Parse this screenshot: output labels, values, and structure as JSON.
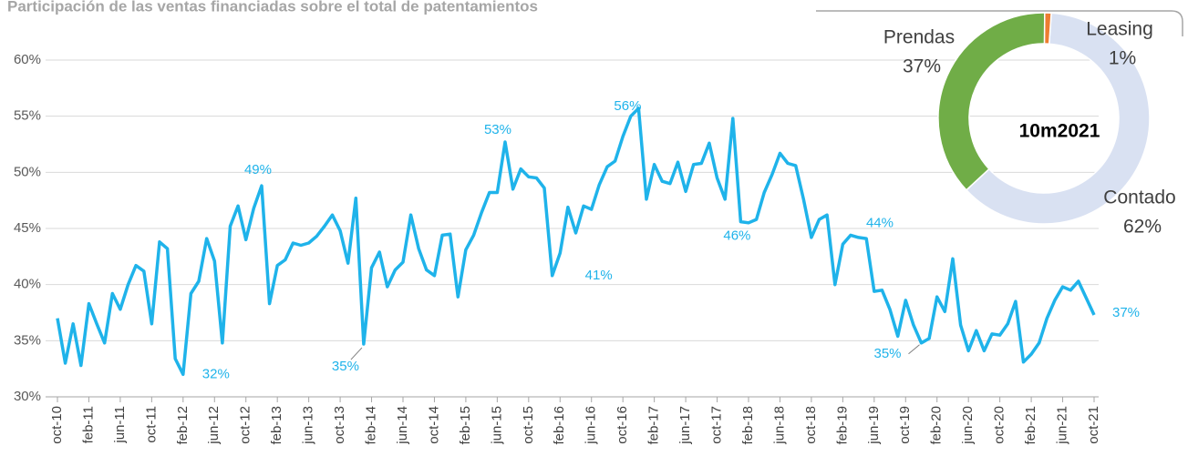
{
  "chart_data": [
    {
      "type": "line",
      "title": "Participación de las ventas financiadas sobre el total de patentamientos",
      "categories": [
        "oct-10",
        null,
        null,
        null,
        "feb-11",
        null,
        null,
        null,
        "jun-11",
        null,
        null,
        null,
        "oct-11",
        null,
        null,
        null,
        "feb-12",
        null,
        null,
        null,
        "jun-12",
        null,
        null,
        null,
        "oct-12",
        null,
        null,
        null,
        "feb-13",
        null,
        null,
        null,
        "jun-13",
        null,
        null,
        null,
        "oct-13",
        null,
        null,
        null,
        "feb-14",
        null,
        null,
        null,
        "jun-14",
        null,
        null,
        null,
        "oct-14",
        null,
        null,
        null,
        "feb-15",
        null,
        null,
        null,
        "jun-15",
        null,
        null,
        null,
        "oct-15",
        null,
        null,
        null,
        "feb-16",
        null,
        null,
        null,
        "jun-16",
        null,
        null,
        null,
        "oct-16",
        null,
        null,
        null,
        "feb-17",
        null,
        null,
        null,
        "jun-17",
        null,
        null,
        null,
        "oct-17",
        null,
        null,
        null,
        "feb-18",
        null,
        null,
        null,
        "jun-18",
        null,
        null,
        null,
        "oct-18",
        null,
        null,
        null,
        "feb-19",
        null,
        null,
        null,
        "jun-19",
        null,
        null,
        null,
        "oct-19",
        null,
        null,
        null,
        "feb-20",
        null,
        null,
        null,
        "jun-20",
        null,
        null,
        null,
        "oct-20",
        null,
        null,
        null,
        "feb-21",
        null,
        null,
        null,
        "jun-21",
        null,
        null,
        null,
        "oct-21"
      ],
      "values": [
        37,
        33,
        36.5,
        32.8,
        38.3,
        36.5,
        34.8,
        39.2,
        37.8,
        40,
        41.7,
        41.2,
        36.5,
        43.8,
        43.2,
        33.4,
        32,
        39.2,
        40.3,
        44.1,
        42.1,
        34.8,
        45.2,
        47,
        44,
        46.8,
        48.8,
        38.3,
        41.7,
        42.2,
        43.7,
        43.5,
        43.7,
        44.3,
        45.2,
        46.2,
        44.8,
        41.9,
        47.7,
        34.7,
        41.5,
        42.9,
        39.8,
        41.3,
        42,
        46.2,
        43.2,
        41.3,
        40.8,
        44.4,
        44.5,
        38.9,
        43.1,
        44.4,
        46.4,
        48.2,
        48.2,
        52.7,
        48.5,
        50.3,
        49.6,
        49.5,
        48.6,
        40.8,
        42.8,
        46.9,
        44.6,
        47,
        46.7,
        48.9,
        50.5,
        51,
        53.2,
        55,
        55.7,
        47.6,
        50.7,
        49.2,
        49,
        50.9,
        48.3,
        50.7,
        50.8,
        52.6,
        49.5,
        47.6,
        54.8,
        45.6,
        45.5,
        45.8,
        48.2,
        49.8,
        51.7,
        50.8,
        50.6,
        47.6,
        44.2,
        45.8,
        46.2,
        40,
        43.6,
        44.4,
        44.2,
        44.1,
        39.4,
        39.5,
        37.8,
        35.4,
        38.6,
        36.4,
        34.8,
        35.2,
        38.9,
        37.6,
        42.3,
        36.4,
        34.1,
        35.9,
        34.1,
        35.6,
        35.5,
        36.5,
        38.5,
        33.1,
        33.8,
        34.8,
        37,
        38.6,
        39.8,
        39.5,
        40.3,
        38.8,
        37.3
      ],
      "value_labels": [
        null,
        null,
        null,
        null,
        null,
        null,
        null,
        null,
        null,
        null,
        null,
        null,
        null,
        null,
        null,
        null,
        "32%",
        null,
        null,
        null,
        null,
        null,
        null,
        null,
        null,
        null,
        "49%",
        null,
        null,
        null,
        null,
        null,
        null,
        null,
        null,
        null,
        null,
        null,
        null,
        "35%",
        null,
        null,
        null,
        null,
        null,
        null,
        null,
        null,
        null,
        null,
        null,
        null,
        null,
        null,
        null,
        null,
        null,
        "53%",
        null,
        null,
        null,
        null,
        null,
        "41%",
        null,
        null,
        null,
        null,
        null,
        null,
        null,
        null,
        null,
        null,
        "56%",
        null,
        null,
        null,
        null,
        null,
        null,
        null,
        null,
        null,
        null,
        null,
        null,
        "46%",
        null,
        null,
        null,
        null,
        null,
        null,
        null,
        null,
        null,
        null,
        null,
        null,
        null,
        "44%",
        null,
        null,
        null,
        null,
        null,
        null,
        null,
        null,
        "35%",
        null,
        null,
        null,
        null,
        null,
        null,
        null,
        null,
        null,
        null,
        null,
        null,
        null,
        null,
        null,
        null,
        null,
        null,
        null,
        null,
        null,
        "37%"
      ],
      "color": "#1fb3ea",
      "ylim": [
        30,
        60
      ],
      "yticks": [
        {
          "value": 30,
          "label": "30%"
        },
        {
          "value": 35,
          "label": "35%"
        },
        {
          "value": 40,
          "label": "40%"
        },
        {
          "value": 45,
          "label": "45%"
        },
        {
          "value": 50,
          "label": "50%"
        },
        {
          "value": 55,
          "label": "55%"
        },
        {
          "value": 60,
          "label": "60%"
        }
      ],
      "grid": true
    },
    {
      "type": "donut",
      "center_label": "10m2021",
      "categories": [
        "Contado",
        "Prendas",
        "Leasing"
      ],
      "values": [
        62,
        37,
        1
      ],
      "value_labels": [
        "62%",
        "37%",
        "1%"
      ],
      "colors": [
        "#d9e1f2",
        "#70ad47",
        "#ed7d31"
      ]
    }
  ]
}
